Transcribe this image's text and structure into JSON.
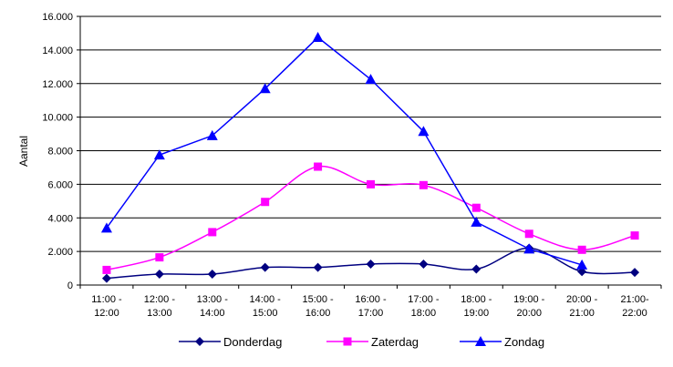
{
  "chart_data": {
    "type": "line",
    "title": "",
    "xlabel": "",
    "ylabel": "Aantal",
    "ylim": [
      0,
      16000
    ],
    "yticks": [
      "0",
      "2.000",
      "4.000",
      "6.000",
      "8.000",
      "10.000",
      "12.000",
      "14.000",
      "16.000"
    ],
    "categories": [
      [
        "11:00 -",
        "12:00"
      ],
      [
        "12:00 -",
        "13:00"
      ],
      [
        "13:00 -",
        "14:00"
      ],
      [
        "14:00 -",
        "15:00"
      ],
      [
        "15:00 -",
        "16:00"
      ],
      [
        "16:00 -",
        "17:00"
      ],
      [
        "17:00 -",
        "18:00"
      ],
      [
        "18:00 -",
        "19:00"
      ],
      [
        "19:00 -",
        "20:00"
      ],
      [
        "20:00 -",
        "21:00"
      ],
      [
        "21:00-",
        "22:00"
      ]
    ],
    "grid": "horizontal",
    "legend_position": "bottom",
    "series": [
      {
        "name": "Donderdag",
        "color": "#000080",
        "marker": "diamond",
        "smooth": true,
        "values": [
          400,
          650,
          650,
          1050,
          1050,
          1250,
          1250,
          950,
          2200,
          800,
          750
        ]
      },
      {
        "name": "Zaterdag",
        "color": "#ff00ff",
        "marker": "square",
        "smooth": true,
        "values": [
          900,
          1650,
          3150,
          4950,
          7050,
          6000,
          5950,
          4600,
          3050,
          2100,
          2950
        ]
      },
      {
        "name": "Zondag",
        "color": "#0000ff",
        "marker": "triangle",
        "smooth": false,
        "values": [
          3400,
          7750,
          8900,
          11700,
          14750,
          12250,
          9150,
          3750,
          2150,
          1200,
          null
        ]
      }
    ]
  }
}
